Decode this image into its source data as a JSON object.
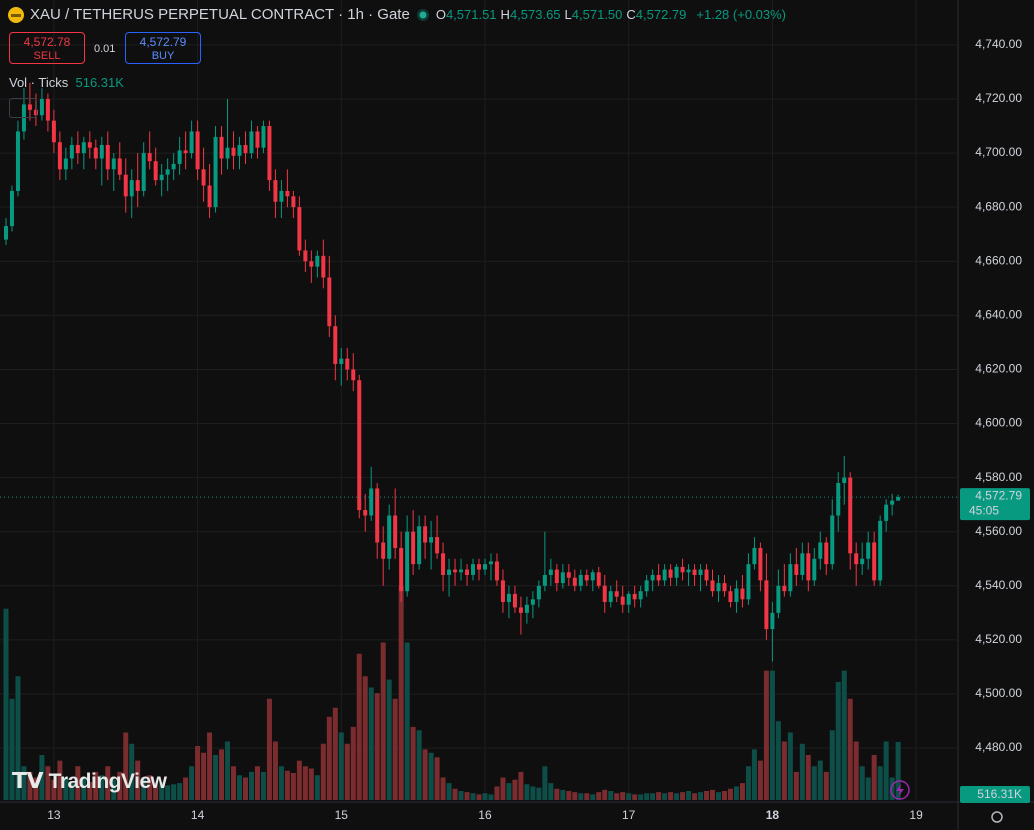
{
  "header": {
    "symbol": "XAU / TETHERUS PERPETUAL CONTRACT · 1h · Gate",
    "ohlc": [
      {
        "key": "O",
        "value": "4,571.51"
      },
      {
        "key": "H",
        "value": "4,573.65"
      },
      {
        "key": "L",
        "value": "4,571.50"
      },
      {
        "key": "C",
        "value": "4,572.79"
      }
    ],
    "change": "+1.28 (+0.03%)"
  },
  "trade": {
    "sell_price": "4,572.78",
    "sell": "SELL",
    "spread": "0.01",
    "buy_price": "4,572.79",
    "buy": "BUY"
  },
  "volume_legend": {
    "label": "Vol · Ticks",
    "value": "516.31K"
  },
  "watermark": "TradingView",
  "chart_data": {
    "type": "candlestick",
    "up_color": "#089981",
    "down_color": "#f23645",
    "volume_up_color": "#0d4f48",
    "volume_down_color": "#7a2c2f",
    "grid": true,
    "last_price_label": "4,572.79",
    "countdown": "45:05",
    "xlim": [
      -1,
      159
    ],
    "xticks": [
      {
        "value": 8,
        "label": "13"
      },
      {
        "value": 32,
        "label": "14"
      },
      {
        "value": 56,
        "label": "15"
      },
      {
        "value": 80,
        "label": "16"
      },
      {
        "value": 104,
        "label": "17"
      },
      {
        "value": 128,
        "label": "18"
      },
      {
        "value": 152,
        "label": "19"
      }
    ],
    "ylim": [
      4460.8,
      4756.6
    ],
    "yticks": [
      {
        "value": 4480,
        "label": "4,480.00"
      },
      {
        "value": 4500,
        "label": "4,500.00"
      },
      {
        "value": 4520,
        "label": "4,520.00"
      },
      {
        "value": 4540,
        "label": "4,540.00"
      },
      {
        "value": 4560,
        "label": "4,560.00"
      },
      {
        "value": 4580,
        "label": "4,580.00"
      },
      {
        "value": 4600,
        "label": "4,600.00"
      },
      {
        "value": 4620,
        "label": "4,620.00"
      },
      {
        "value": 4640,
        "label": "4,640.00"
      },
      {
        "value": 4660,
        "label": "4,660.00"
      },
      {
        "value": 4680,
        "label": "4,680.00"
      },
      {
        "value": 4700,
        "label": "4,700.00"
      },
      {
        "value": 4720,
        "label": "4,720.00"
      },
      {
        "value": 4740,
        "label": "4,740.00"
      }
    ],
    "volume_lim": [
      0,
      2000000
    ],
    "open": [
      4668,
      4673,
      4686,
      4708,
      4718,
      4716,
      4714,
      4720,
      4712,
      4704,
      4694,
      4698,
      4703,
      4700,
      4704,
      4702,
      4698,
      4703,
      4694,
      4698,
      4692,
      4684,
      4690,
      4686,
      4700,
      4697,
      4690,
      4692,
      4694,
      4696,
      4701,
      4700,
      4708,
      4694,
      4688,
      4680,
      4706,
      4698,
      4702,
      4699,
      4703,
      4700,
      4708,
      4702,
      4710,
      4690,
      4682,
      4686,
      4684,
      4680,
      4664,
      4660,
      4658,
      4662,
      4654,
      4636,
      4622,
      4624,
      4620,
      4616,
      4568,
      4566,
      4576,
      4556,
      4550,
      4566,
      4554,
      4538,
      4560,
      4548,
      4562,
      4556,
      4558,
      4552,
      4544,
      4546,
      4545,
      4546,
      4544,
      4548,
      4546,
      4548,
      4549,
      4542,
      4534,
      4537,
      4532,
      4530,
      4533,
      4535,
      4540,
      4544,
      4546,
      4541,
      4545,
      4543,
      4540,
      4544,
      4542,
      4545,
      4540,
      4534,
      4538,
      4536,
      4533,
      4537,
      4535,
      4538,
      4542,
      4544,
      4542,
      4546,
      4543,
      4547,
      4545,
      4546,
      4544,
      4546,
      4542,
      4538,
      4541,
      4538,
      4534,
      4539,
      4535,
      4548,
      4554,
      4542,
      4524,
      4530,
      4540,
      4538,
      4548,
      4544,
      4552,
      4542,
      4550,
      4556,
      4548,
      4566,
      4578,
      4580,
      4552,
      4548,
      4550,
      4556,
      4542,
      4564,
      4570,
      4571.51
    ],
    "high": [
      4676,
      4688,
      4712,
      4724,
      4726,
      4722,
      4724,
      4722,
      4716,
      4708,
      4702,
      4706,
      4708,
      4706,
      4708,
      4705,
      4706,
      4708,
      4700,
      4704,
      4698,
      4694,
      4700,
      4704,
      4708,
      4702,
      4696,
      4698,
      4700,
      4706,
      4708,
      4712,
      4712,
      4702,
      4696,
      4710,
      4710,
      4720,
      4708,
      4706,
      4708,
      4712,
      4710,
      4712,
      4712,
      4694,
      4690,
      4694,
      4686,
      4684,
      4668,
      4664,
      4664,
      4668,
      4662,
      4640,
      4628,
      4628,
      4626,
      4618,
      4574,
      4584,
      4578,
      4562,
      4570,
      4576,
      4560,
      4566,
      4568,
      4566,
      4566,
      4564,
      4566,
      4556,
      4550,
      4550,
      4550,
      4548,
      4550,
      4550,
      4550,
      4552,
      4552,
      4546,
      4540,
      4540,
      4536,
      4536,
      4538,
      4542,
      4560,
      4550,
      4548,
      4548,
      4548,
      4546,
      4546,
      4546,
      4546,
      4547,
      4544,
      4540,
      4542,
      4540,
      4538,
      4540,
      4540,
      4544,
      4546,
      4548,
      4548,
      4548,
      4548,
      4550,
      4548,
      4548,
      4548,
      4548,
      4546,
      4544,
      4544,
      4540,
      4542,
      4544,
      4552,
      4558,
      4556,
      4552,
      4534,
      4546,
      4548,
      4552,
      4554,
      4556,
      4556,
      4554,
      4560,
      4558,
      4572,
      4582,
      4588,
      4582,
      4556,
      4556,
      4560,
      4560,
      4566,
      4572,
      4574,
      4573.65
    ],
    "low": [
      4666,
      4671,
      4684,
      4705,
      4712,
      4710,
      4712,
      4708,
      4700,
      4690,
      4690,
      4694,
      4696,
      4694,
      4698,
      4694,
      4688,
      4690,
      4686,
      4690,
      4678,
      4676,
      4680,
      4684,
      4694,
      4688,
      4684,
      4686,
      4690,
      4692,
      4694,
      4698,
      4690,
      4682,
      4676,
      4678,
      4692,
      4694,
      4694,
      4694,
      4696,
      4698,
      4698,
      4700,
      4686,
      4676,
      4676,
      4680,
      4676,
      4662,
      4656,
      4652,
      4654,
      4650,
      4632,
      4616,
      4614,
      4616,
      4612,
      4565,
      4560,
      4564,
      4550,
      4540,
      4546,
      4550,
      4534,
      4536,
      4544,
      4546,
      4550,
      4546,
      4550,
      4538,
      4536,
      4540,
      4542,
      4540,
      4542,
      4542,
      4544,
      4542,
      4540,
      4530,
      4528,
      4530,
      4522,
      4526,
      4528,
      4532,
      4538,
      4540,
      4538,
      4539,
      4540,
      4538,
      4538,
      4540,
      4538,
      4539,
      4530,
      4532,
      4534,
      4530,
      4530,
      4532,
      4532,
      4536,
      4538,
      4540,
      4540,
      4540,
      4540,
      4542,
      4540,
      4540,
      4538,
      4540,
      4536,
      4534,
      4536,
      4532,
      4530,
      4532,
      4533,
      4546,
      4538,
      4520,
      4512,
      4528,
      4536,
      4536,
      4540,
      4542,
      4538,
      4540,
      4546,
      4544,
      4546,
      4560,
      4570,
      4546,
      4540,
      4544,
      4546,
      4540,
      4540,
      4560,
      4566,
      4571.5
    ],
    "close": [
      4673,
      4686,
      4708,
      4718,
      4716,
      4714,
      4720,
      4712,
      4704,
      4694,
      4698,
      4703,
      4700,
      4704,
      4702,
      4698,
      4703,
      4694,
      4698,
      4692,
      4684,
      4690,
      4686,
      4700,
      4697,
      4690,
      4692,
      4694,
      4696,
      4701,
      4700,
      4708,
      4694,
      4688,
      4680,
      4706,
      4698,
      4702,
      4699,
      4703,
      4700,
      4708,
      4702,
      4710,
      4690,
      4682,
      4686,
      4684,
      4680,
      4664,
      4660,
      4658,
      4662,
      4654,
      4636,
      4622,
      4624,
      4620,
      4616,
      4568,
      4566,
      4576,
      4556,
      4550,
      4566,
      4554,
      4538,
      4560,
      4548,
      4562,
      4556,
      4558,
      4552,
      4544,
      4546,
      4545,
      4546,
      4544,
      4548,
      4546,
      4548,
      4549,
      4542,
      4534,
      4537,
      4532,
      4530,
      4533,
      4535,
      4540,
      4544,
      4546,
      4541,
      4545,
      4543,
      4540,
      4544,
      4542,
      4545,
      4540,
      4534,
      4538,
      4536,
      4533,
      4537,
      4535,
      4538,
      4542,
      4544,
      4542,
      4546,
      4543,
      4547,
      4545,
      4546,
      4544,
      4546,
      4542,
      4538,
      4541,
      4538,
      4534,
      4539,
      4535,
      4548,
      4554,
      4542,
      4524,
      4530,
      4540,
      4538,
      4548,
      4544,
      4552,
      4542,
      4550,
      4556,
      4548,
      4566,
      4578,
      4580,
      4552,
      4548,
      4550,
      4556,
      4542,
      4564,
      4570,
      4571.51,
      4572.79
    ],
    "volume": [
      1700000,
      900000,
      1100000,
      300000,
      250000,
      200000,
      400000,
      300000,
      180000,
      350000,
      200000,
      150000,
      300000,
      200000,
      160000,
      250000,
      220000,
      300000,
      180000,
      250000,
      600000,
      500000,
      350000,
      200000,
      220000,
      150000,
      160000,
      130000,
      140000,
      150000,
      200000,
      300000,
      480000,
      420000,
      600000,
      400000,
      450000,
      520000,
      300000,
      220000,
      200000,
      250000,
      300000,
      250000,
      900000,
      520000,
      300000,
      260000,
      240000,
      350000,
      300000,
      280000,
      220000,
      500000,
      740000,
      820000,
      600000,
      500000,
      650000,
      1300000,
      1100000,
      1000000,
      950000,
      1400000,
      1070000,
      900000,
      1900000,
      1400000,
      650000,
      620000,
      450000,
      420000,
      380000,
      200000,
      150000,
      100000,
      80000,
      70000,
      60000,
      50000,
      60000,
      50000,
      120000,
      200000,
      150000,
      180000,
      250000,
      140000,
      120000,
      110000,
      300000,
      150000,
      100000,
      90000,
      80000,
      70000,
      60000,
      60000,
      50000,
      70000,
      90000,
      80000,
      60000,
      70000,
      60000,
      50000,
      50000,
      60000,
      60000,
      70000,
      60000,
      70000,
      60000,
      70000,
      80000,
      60000,
      70000,
      80000,
      90000,
      70000,
      80000,
      100000,
      120000,
      150000,
      300000,
      450000,
      350000,
      1150000,
      1150000,
      700000,
      520000,
      600000,
      250000,
      500000,
      400000,
      300000,
      350000,
      250000,
      620000,
      1050000,
      1150000,
      900000,
      520000,
      300000,
      200000,
      400000,
      300000,
      520000,
      200000,
      516310
    ]
  }
}
